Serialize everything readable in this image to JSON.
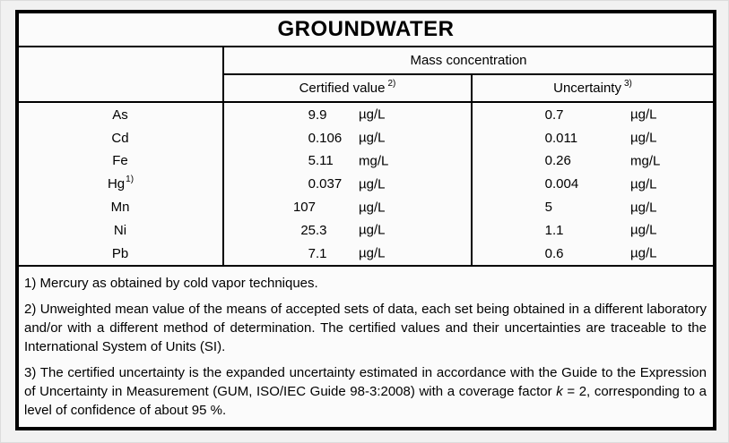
{
  "table": {
    "title": "GROUNDWATER",
    "group_header": "Mass concentration",
    "col_headers": {
      "certified": {
        "label": "Certified value",
        "sup": "2)"
      },
      "uncertainty": {
        "label": "Uncertainty",
        "sup": "3)"
      }
    },
    "rows": [
      {
        "element": "As",
        "element_sup": "",
        "certified_value": "9.9",
        "certified_unit": "µg/L",
        "uncertainty_value": "0.7",
        "uncertainty_unit": "µg/L"
      },
      {
        "element": "Cd",
        "element_sup": "",
        "certified_value": "0.106",
        "certified_unit": "µg/L",
        "uncertainty_value": "0.011",
        "uncertainty_unit": "µg/L"
      },
      {
        "element": "Fe",
        "element_sup": "",
        "certified_value": "5.11",
        "certified_unit": "mg/L",
        "uncertainty_value": "0.26",
        "uncertainty_unit": "mg/L"
      },
      {
        "element": "Hg",
        "element_sup": "1)",
        "certified_value": "0.037",
        "certified_unit": "µg/L",
        "uncertainty_value": "0.004",
        "uncertainty_unit": "µg/L"
      },
      {
        "element": "Mn",
        "element_sup": "",
        "certified_value": "107",
        "certified_unit": "µg/L",
        "uncertainty_value": "5",
        "uncertainty_unit": "µg/L"
      },
      {
        "element": "Ni",
        "element_sup": "",
        "certified_value": "25.3",
        "certified_unit": "µg/L",
        "uncertainty_value": "1.1",
        "uncertainty_unit": "µg/L"
      },
      {
        "element": "Pb",
        "element_sup": "",
        "certified_value": "7.1",
        "certified_unit": "µg/L",
        "uncertainty_value": "0.6",
        "uncertainty_unit": "µg/L"
      }
    ],
    "footnotes": [
      {
        "marker": "1)",
        "text": "Mercury as obtained by cold vapor techniques."
      },
      {
        "marker": "2)",
        "text": "Unweighted mean value of the means of accepted sets of data, each set being obtained in a different laboratory and/or with a different method of determination. The certified values and their uncertainties are traceable to the International System of Units (SI)."
      },
      {
        "marker": "3)",
        "text_before_factor": "The certified uncertainty is the expanded uncertainty estimated in accordance with the Guide to the Expression of Uncertainty in Measurement (GUM, ISO/IEC Guide 98-3:2008) with a coverage factor ",
        "factor_symbol": "k",
        "text_after_factor": " = 2, corresponding to a level of confidence of about 95 %."
      }
    ]
  },
  "colors": {
    "border": "#000000",
    "table_bg": "#fbfbfb",
    "page_bg": "#f1f1f1",
    "text": "#000000"
  }
}
